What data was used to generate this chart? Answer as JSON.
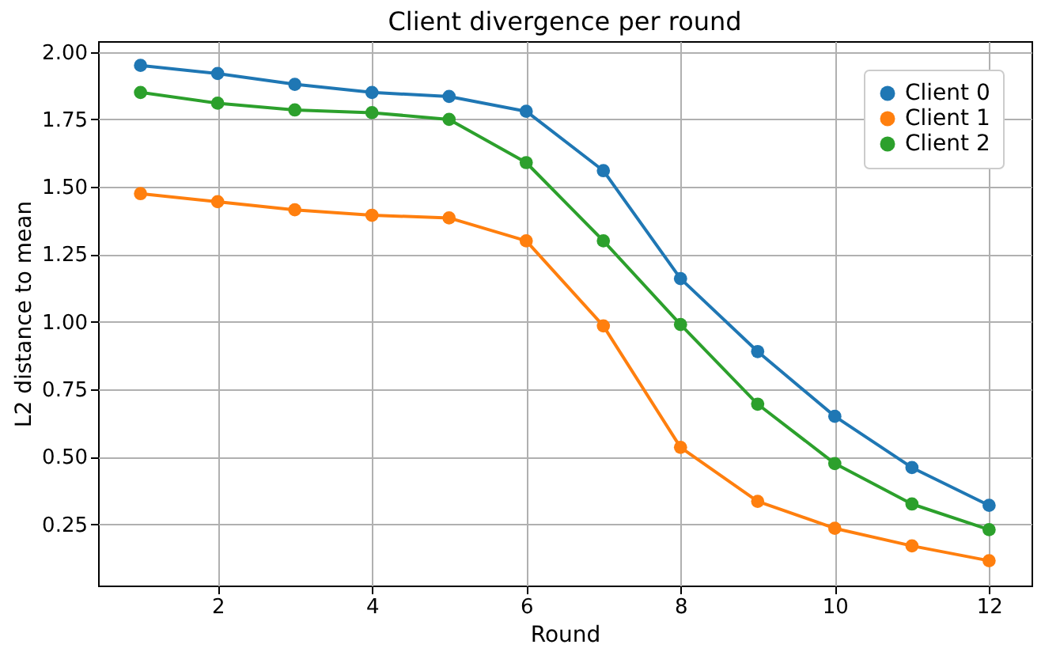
{
  "chart_data": {
    "type": "line",
    "title": "Client divergence per round",
    "xlabel": "Round",
    "ylabel": "L2 distance to mean",
    "x": [
      1,
      2,
      3,
      4,
      5,
      6,
      7,
      8,
      9,
      10,
      11,
      12
    ],
    "series": [
      {
        "name": "Client 0",
        "color": "#1f77b4",
        "values": [
          1.95,
          1.92,
          1.88,
          1.85,
          1.835,
          1.78,
          1.56,
          1.16,
          0.89,
          0.65,
          0.46,
          0.32
        ]
      },
      {
        "name": "Client 1",
        "color": "#ff7f0e",
        "values": [
          1.475,
          1.445,
          1.415,
          1.395,
          1.385,
          1.3,
          0.985,
          0.535,
          0.335,
          0.235,
          0.17,
          0.115
        ]
      },
      {
        "name": "Client 2",
        "color": "#2ca02c",
        "values": [
          1.85,
          1.81,
          1.785,
          1.775,
          1.75,
          1.59,
          1.3,
          0.99,
          0.695,
          0.475,
          0.325,
          0.23
        ]
      }
    ],
    "xlim": [
      0.45,
      12.55
    ],
    "ylim": [
      0.023,
      2.04
    ],
    "xticks": [
      2,
      4,
      6,
      8,
      10,
      12
    ],
    "yticks": [
      {
        "value": 0.25,
        "label": "0.25"
      },
      {
        "value": 0.5,
        "label": "0.50"
      },
      {
        "value": 0.75,
        "label": "0.75"
      },
      {
        "value": 1,
        "label": "1.00"
      },
      {
        "value": 1.25,
        "label": "1.25"
      },
      {
        "value": 1.5,
        "label": "1.50"
      },
      {
        "value": 1.75,
        "label": "1.75"
      },
      {
        "value": 2,
        "label": "2.00"
      }
    ],
    "grid": true,
    "legend": "top right",
    "marker": "circle",
    "line_style": "solid"
  }
}
